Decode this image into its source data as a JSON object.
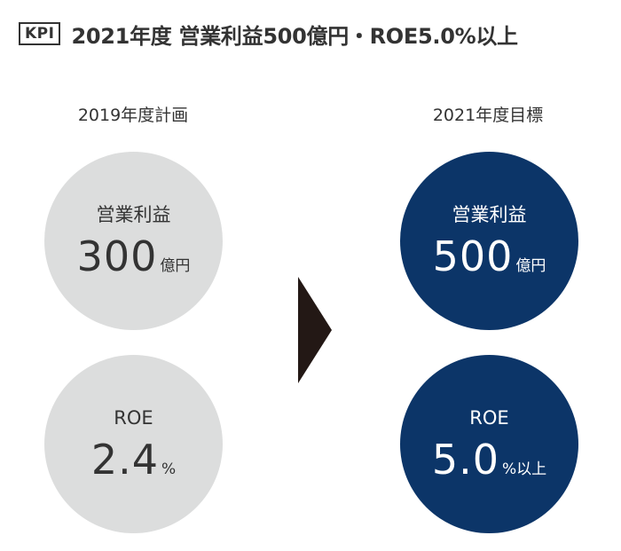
{
  "header": {
    "badge": "KPI",
    "title": "2021年度 営業利益500億円・ROE5.0%以上"
  },
  "columns": {
    "left_label": "2019年度計画",
    "right_label": "2021年度目標"
  },
  "plan_2019": {
    "operating_profit": {
      "label": "営業利益",
      "value": "300",
      "unit": "億円"
    },
    "roe": {
      "label": "ROE",
      "value": "2.4",
      "unit": "%"
    }
  },
  "target_2021": {
    "operating_profit": {
      "label": "営業利益",
      "value": "500",
      "unit": "億円"
    },
    "roe": {
      "label": "ROE",
      "value": "5.0",
      "unit": "%以上"
    }
  },
  "colors": {
    "plan_circle": "#dcdddd",
    "target_circle": "#0c3568",
    "arrow": "#231815",
    "text": "#333333"
  },
  "icons": {
    "arrow": "triangle-right-icon"
  }
}
